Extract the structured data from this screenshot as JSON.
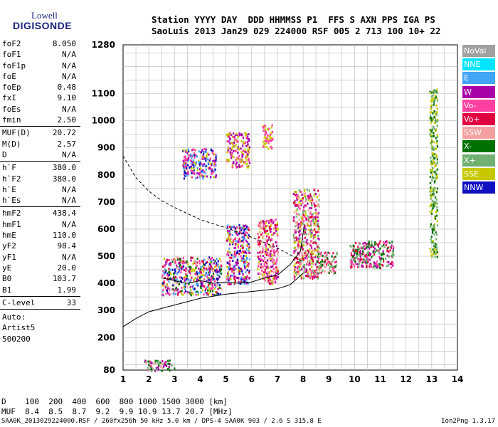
{
  "logo": {
    "line1": "Lowell",
    "line2": "DIGISONDE"
  },
  "header": {
    "labels": "Station YYYY DAY  DDD HHMMSS P1  FFS S AXN PPS IGA PS",
    "values": "SaoLuis 2013 Jan29 029 224000 RSF 005 2 713 100 10+ 22"
  },
  "params_groups": [
    [
      {
        "label": "foF2",
        "value": "8.050"
      },
      {
        "label": "foF1",
        "value": "N/A"
      },
      {
        "label": "foF1p",
        "value": "N/A"
      },
      {
        "label": "foE",
        "value": "N/A"
      },
      {
        "label": "foEp",
        "value": "0.48"
      },
      {
        "label": "fxI",
        "value": "9.10"
      },
      {
        "label": "foEs",
        "value": "N/A"
      },
      {
        "label": "fmin",
        "value": "2.50"
      }
    ],
    [
      {
        "label": "MUF(D)",
        "value": "20.72"
      },
      {
        "label": "M(D)",
        "value": "2.57"
      },
      {
        "label": "D",
        "value": "N/A"
      }
    ],
    [
      {
        "label": "h`F",
        "value": "380.0"
      },
      {
        "label": "h`F2",
        "value": "380.0"
      },
      {
        "label": "h`E",
        "value": "N/A"
      },
      {
        "label": "h`Es",
        "value": "N/A"
      }
    ],
    [
      {
        "label": "hmF2",
        "value": "438.4"
      },
      {
        "label": "hmF1",
        "value": "N/A"
      },
      {
        "label": "hmE",
        "value": "110.0"
      },
      {
        "label": "yF2",
        "value": "98.4"
      },
      {
        "label": "yF1",
        "value": "N/A"
      },
      {
        "label": "yE",
        "value": "20.0"
      },
      {
        "label": "B0",
        "value": "103.7"
      },
      {
        "label": "B1",
        "value": "1.99"
      }
    ],
    [
      {
        "label": "C-level",
        "value": "33"
      }
    ]
  ],
  "auto_block": {
    "line1": "Auto:",
    "line2": "Artist5",
    "line3": "500200"
  },
  "legend": [
    {
      "label": "NoVal",
      "color": "#a0a0a0"
    },
    {
      "label": "NNE",
      "color": "#00e5ff"
    },
    {
      "label": "E",
      "color": "#42a5f5"
    },
    {
      "label": "W",
      "color": "#aa00aa"
    },
    {
      "label": "Vo-",
      "color": "#ff40a0"
    },
    {
      "label": "Vo+",
      "color": "#e00040"
    },
    {
      "label": "SSW",
      "color": "#f4a0a0"
    },
    {
      "label": "X-",
      "color": "#007000"
    },
    {
      "label": "X+",
      "color": "#70b070"
    },
    {
      "label": "SSE",
      "color": "#c8c800"
    },
    {
      "label": "NNW",
      "color": "#1010c0"
    }
  ],
  "chart_data": {
    "type": "scatter",
    "title": "",
    "xlabel": "",
    "ylabel": "",
    "xlim": [
      1,
      14
    ],
    "ylim": [
      80,
      1280
    ],
    "x_ticks": [
      "1",
      "2",
      "3",
      "4",
      "5",
      "6",
      "7",
      "8",
      "9",
      "10",
      "11",
      "12",
      "13",
      "14"
    ],
    "y_ticks": [
      {
        "value": 80,
        "label": "80"
      },
      {
        "value": 200,
        "label": "200"
      },
      {
        "value": 300,
        "label": "300"
      },
      {
        "value": 400,
        "label": "400"
      },
      {
        "value": 500,
        "label": "500"
      },
      {
        "value": 600,
        "label": "600"
      },
      {
        "value": 700,
        "label": "700"
      },
      {
        "value": 800,
        "label": "800"
      },
      {
        "value": 900,
        "label": "900"
      },
      {
        "value": 1000,
        "label": "1000"
      },
      {
        "value": 1100,
        "label": "1100"
      },
      {
        "value": 1280,
        "label": "1280"
      }
    ],
    "grid": true,
    "echo_clusters": [
      {
        "x": [
          2.5,
          4.8
        ],
        "y": [
          360,
          500
        ],
        "colors": [
          "W",
          "Vo-",
          "Vo+",
          "NNW",
          "SSE",
          "X-",
          "SSW",
          "E"
        ]
      },
      {
        "x": [
          5.0,
          5.9
        ],
        "y": [
          400,
          620
        ],
        "colors": [
          "W",
          "Vo-",
          "SSE",
          "NNW",
          "E",
          "Vo+"
        ]
      },
      {
        "x": [
          6.2,
          7.0
        ],
        "y": [
          400,
          640
        ],
        "colors": [
          "Vo-",
          "Vo+",
          "W",
          "SSE",
          "SSW"
        ]
      },
      {
        "x": [
          7.6,
          8.6
        ],
        "y": [
          420,
          750
        ],
        "colors": [
          "SSE",
          "Vo+",
          "Vo-",
          "W",
          "SSW",
          "X+"
        ]
      },
      {
        "x": [
          8.5,
          9.3
        ],
        "y": [
          440,
          520
        ],
        "colors": [
          "Vo-",
          "Vo+",
          "SSW",
          "X+",
          "X-"
        ]
      },
      {
        "x": [
          3.3,
          4.6
        ],
        "y": [
          790,
          900
        ],
        "colors": [
          "Vo-",
          "W",
          "SSE",
          "NNW",
          "E"
        ]
      },
      {
        "x": [
          5.0,
          5.9
        ],
        "y": [
          830,
          960
        ],
        "colors": [
          "SSE",
          "Vo-",
          "W"
        ]
      },
      {
        "x": [
          6.4,
          6.8
        ],
        "y": [
          900,
          990
        ],
        "colors": [
          "SSE",
          "Vo-"
        ]
      },
      {
        "x": [
          9.8,
          11.5
        ],
        "y": [
          460,
          560
        ],
        "colors": [
          "X-",
          "X+",
          "Vo-",
          "Vo+",
          "W"
        ]
      },
      {
        "x": [
          1.8,
          3.0
        ],
        "y": [
          80,
          120
        ],
        "colors": [
          "Vo-",
          "X-",
          "X+",
          "W",
          "SSW"
        ]
      },
      {
        "x": [
          12.9,
          13.2
        ],
        "y": [
          500,
          1120
        ],
        "colors": [
          "X-",
          "X+",
          "SSE"
        ]
      }
    ],
    "virtual_height_trace": [
      {
        "x": 2.5,
        "y": 420
      },
      {
        "x": 3.0,
        "y": 410
      },
      {
        "x": 3.5,
        "y": 400
      },
      {
        "x": 4.0,
        "y": 410
      },
      {
        "x": 4.5,
        "y": 400
      },
      {
        "x": 5.0,
        "y": 405
      },
      {
        "x": 5.5,
        "y": 400
      },
      {
        "x": 6.0,
        "y": 405
      },
      {
        "x": 6.5,
        "y": 420
      },
      {
        "x": 7.0,
        "y": 430
      },
      {
        "x": 7.5,
        "y": 470
      },
      {
        "x": 7.9,
        "y": 520
      },
      {
        "x": 8.05,
        "y": 620
      }
    ],
    "true_height_profile": [
      {
        "x": 1.0,
        "y": 240
      },
      {
        "x": 1.5,
        "y": 270
      },
      {
        "x": 2.0,
        "y": 295
      },
      {
        "x": 3.0,
        "y": 320
      },
      {
        "x": 4.0,
        "y": 345
      },
      {
        "x": 5.0,
        "y": 360
      },
      {
        "x": 6.0,
        "y": 370
      },
      {
        "x": 7.0,
        "y": 380
      },
      {
        "x": 7.5,
        "y": 395
      },
      {
        "x": 8.0,
        "y": 438
      }
    ],
    "muf_dashed": [
      {
        "x": 1.0,
        "y": 870
      },
      {
        "x": 1.5,
        "y": 790
      },
      {
        "x": 2.0,
        "y": 740
      },
      {
        "x": 2.5,
        "y": 705
      },
      {
        "x": 3.0,
        "y": 680
      },
      {
        "x": 4.0,
        "y": 635
      },
      {
        "x": 5.0,
        "y": 605
      },
      {
        "x": 6.0,
        "y": 570
      },
      {
        "x": 7.0,
        "y": 530
      },
      {
        "x": 7.5,
        "y": 505
      },
      {
        "x": 8.0,
        "y": 480
      }
    ]
  },
  "footer": {
    "d_line": "D    100  200  400  600  800 1000 1500 3000 [km]",
    "muf_line": "MUF  8.4  8.5  8.7  9.2  9.9 10.9 13.7 20.7 [MHz]",
    "file_line": "SAA0K_2013029224000.RSF / 260fx256h 50 kHz 5.0 km / DPS-4 SAA0K 903 / 2.6 S 315.8 E",
    "version": "Ion2Png 1.3.17"
  }
}
